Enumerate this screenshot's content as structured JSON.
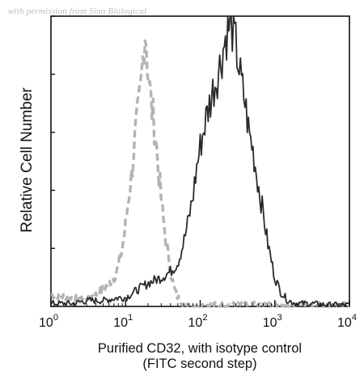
{
  "watermark": "with permission from Sino Biological",
  "chart_data": {
    "type": "line",
    "title": "",
    "xlabel_line1": "Purified CD32, with isotype control",
    "xlabel_line2": "(FITC second step)",
    "ylabel": "Relative Cell Number",
    "x_scale": "log",
    "xlim": [
      1,
      10000
    ],
    "ylim": [
      0,
      100
    ],
    "x_ticks": [
      {
        "base": "10",
        "exp": "0"
      },
      {
        "base": "10",
        "exp": "1"
      },
      {
        "base": "10",
        "exp": "2"
      },
      {
        "base": "10",
        "exp": "3"
      },
      {
        "base": "10",
        "exp": "4"
      }
    ],
    "grid": false,
    "legend": "none",
    "series": [
      {
        "role": "isotype-control",
        "style": "dashed",
        "color": "#b3b3b3",
        "x": [
          1,
          2,
          3,
          4,
          5,
          6,
          7,
          8,
          9,
          10,
          11,
          12,
          13,
          14,
          15,
          16,
          17,
          18,
          19,
          20,
          22,
          25,
          28,
          32,
          36,
          40,
          45,
          50,
          60,
          80,
          100,
          200,
          500,
          1000,
          10000
        ],
        "y": [
          4,
          3,
          3,
          4,
          6,
          8,
          10,
          14,
          20,
          28,
          38,
          45,
          55,
          62,
          68,
          75,
          85,
          96,
          92,
          80,
          70,
          60,
          45,
          30,
          20,
          12,
          6,
          3,
          1,
          0.5,
          0.5,
          0.5,
          0.5,
          0.5,
          0.5
        ]
      },
      {
        "role": "CD32",
        "style": "solid",
        "color": "#2a2a2a",
        "x": [
          1,
          2,
          3,
          5,
          8,
          10,
          15,
          20,
          30,
          40,
          50,
          60,
          70,
          80,
          90,
          100,
          120,
          150,
          180,
          200,
          230,
          260,
          300,
          350,
          400,
          450,
          500,
          600,
          700,
          800,
          1000,
          1200,
          1500,
          2000,
          3000,
          5000,
          10000
        ],
        "y": [
          1,
          1,
          2,
          2,
          3,
          3,
          6,
          8,
          10,
          12,
          15,
          22,
          30,
          38,
          48,
          55,
          65,
          75,
          82,
          88,
          95,
          98,
          90,
          78,
          70,
          60,
          55,
          42,
          32,
          22,
          10,
          5,
          2,
          1,
          1,
          0.5,
          0.5
        ]
      }
    ]
  }
}
